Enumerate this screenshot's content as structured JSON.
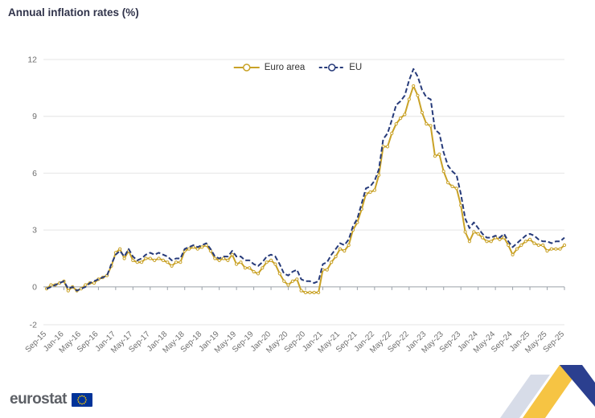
{
  "page": {
    "title": "Annual inflation rates (%)"
  },
  "footer": {
    "brand": "eurostat"
  },
  "brand": {
    "flag_blue": "#003399",
    "star_yellow": "#FFCC00",
    "ribbon_yellow": "#F6C443",
    "ribbon_blue": "#2B3F8F",
    "ribbon_gray": "#D7DCE8"
  },
  "chart_data": {
    "type": "line",
    "title": "Annual inflation rates (%)",
    "xlabel": "",
    "ylabel": "",
    "ylim": [
      -2,
      12
    ],
    "yticks": [
      -2,
      0,
      3,
      6,
      9,
      12
    ],
    "grid": true,
    "legend_position": "top-center",
    "tick_every": 4,
    "x": [
      "Sep-15",
      "Oct-15",
      "Nov-15",
      "Dec-15",
      "Jan-16",
      "Feb-16",
      "Mar-16",
      "Apr-16",
      "May-16",
      "Jun-16",
      "Jul-16",
      "Aug-16",
      "Sep-16",
      "Oct-16",
      "Nov-16",
      "Dec-16",
      "Jan-17",
      "Feb-17",
      "Mar-17",
      "Apr-17",
      "May-17",
      "Jun-17",
      "Jul-17",
      "Aug-17",
      "Sep-17",
      "Oct-17",
      "Nov-17",
      "Dec-17",
      "Jan-18",
      "Feb-18",
      "Mar-18",
      "Apr-18",
      "May-18",
      "Jun-18",
      "Jul-18",
      "Aug-18",
      "Sep-18",
      "Oct-18",
      "Nov-18",
      "Dec-18",
      "Jan-19",
      "Feb-19",
      "Mar-19",
      "Apr-19",
      "May-19",
      "Jun-19",
      "Jul-19",
      "Aug-19",
      "Sep-19",
      "Oct-19",
      "Nov-19",
      "Dec-19",
      "Jan-20",
      "Feb-20",
      "Mar-20",
      "Apr-20",
      "May-20",
      "Jun-20",
      "Jul-20",
      "Aug-20",
      "Sep-20",
      "Oct-20",
      "Nov-20",
      "Dec-20",
      "Jan-21",
      "Feb-21",
      "Mar-21",
      "Apr-21",
      "May-21",
      "Jun-21",
      "Jul-21",
      "Aug-21",
      "Sep-21",
      "Oct-21",
      "Nov-21",
      "Dec-21",
      "Jan-22",
      "Feb-22",
      "Mar-22",
      "Apr-22",
      "May-22",
      "Jun-22",
      "Jul-22",
      "Aug-22",
      "Sep-22",
      "Oct-22",
      "Nov-22",
      "Dec-22",
      "Jan-23",
      "Feb-23",
      "Mar-23",
      "Apr-23",
      "May-23",
      "Jun-23",
      "Jul-23",
      "Aug-23",
      "Sep-23",
      "Oct-23",
      "Nov-23",
      "Dec-23",
      "Jan-24",
      "Feb-24",
      "Mar-24",
      "Apr-24",
      "May-24",
      "Jun-24",
      "Jul-24",
      "Aug-24",
      "Sep-24",
      "Oct-24",
      "Nov-24",
      "Dec-24",
      "Jan-25",
      "Feb-25",
      "Mar-25",
      "Apr-25",
      "May-25",
      "Jun-25",
      "Jul-25",
      "Aug-25",
      "Sep-25"
    ],
    "series": [
      {
        "name": "Euro area",
        "color": "#C9A227",
        "style": "solid",
        "markers": true,
        "values": [
          -0.1,
          0.1,
          0.1,
          0.2,
          0.3,
          -0.2,
          0.0,
          -0.2,
          -0.1,
          0.1,
          0.2,
          0.2,
          0.4,
          0.5,
          0.6,
          1.1,
          1.8,
          2.0,
          1.5,
          1.9,
          1.4,
          1.3,
          1.3,
          1.5,
          1.5,
          1.4,
          1.5,
          1.4,
          1.3,
          1.1,
          1.3,
          1.3,
          1.9,
          2.0,
          2.1,
          2.0,
          2.1,
          2.2,
          1.9,
          1.5,
          1.4,
          1.5,
          1.4,
          1.7,
          1.2,
          1.3,
          1.0,
          1.0,
          0.8,
          0.7,
          1.0,
          1.3,
          1.4,
          1.2,
          0.7,
          0.3,
          0.1,
          0.3,
          0.4,
          -0.2,
          -0.3,
          -0.3,
          -0.3,
          -0.3,
          0.9,
          0.9,
          1.3,
          1.6,
          2.0,
          1.9,
          2.2,
          3.0,
          3.4,
          4.1,
          4.9,
          5.0,
          5.1,
          5.9,
          7.4,
          7.4,
          8.1,
          8.6,
          8.9,
          9.1,
          9.9,
          10.6,
          10.1,
          9.2,
          8.6,
          8.5,
          6.9,
          7.0,
          6.1,
          5.5,
          5.3,
          5.2,
          4.3,
          2.9,
          2.4,
          2.9,
          2.8,
          2.6,
          2.4,
          2.4,
          2.6,
          2.5,
          2.6,
          2.2,
          1.7,
          2.0,
          2.2,
          2.4,
          2.5,
          2.3,
          2.2,
          2.2,
          1.9,
          2.0,
          2.0,
          2.0,
          2.2
        ]
      },
      {
        "name": "EU",
        "color": "#273B7A",
        "style": "dashed",
        "markers": false,
        "values": [
          -0.1,
          0.0,
          0.1,
          0.2,
          0.3,
          -0.1,
          0.0,
          -0.2,
          -0.1,
          0.0,
          0.2,
          0.3,
          0.4,
          0.5,
          0.6,
          1.2,
          1.7,
          1.9,
          1.6,
          2.0,
          1.6,
          1.4,
          1.5,
          1.7,
          1.8,
          1.7,
          1.8,
          1.7,
          1.6,
          1.4,
          1.5,
          1.5,
          2.0,
          2.1,
          2.2,
          2.1,
          2.2,
          2.3,
          2.0,
          1.6,
          1.5,
          1.6,
          1.6,
          1.9,
          1.6,
          1.6,
          1.4,
          1.4,
          1.2,
          1.1,
          1.3,
          1.6,
          1.7,
          1.6,
          1.2,
          0.7,
          0.6,
          0.8,
          0.9,
          0.4,
          0.3,
          0.3,
          0.2,
          0.3,
          1.2,
          1.3,
          1.7,
          2.0,
          2.3,
          2.2,
          2.5,
          3.2,
          3.6,
          4.4,
          5.2,
          5.3,
          5.6,
          6.2,
          7.8,
          8.1,
          8.8,
          9.6,
          9.8,
          10.1,
          10.9,
          11.5,
          11.1,
          10.4,
          10.0,
          9.9,
          8.3,
          8.1,
          7.1,
          6.4,
          6.1,
          5.9,
          4.9,
          3.6,
          3.1,
          3.4,
          3.1,
          2.8,
          2.6,
          2.6,
          2.7,
          2.6,
          2.8,
          2.4,
          2.1,
          2.3,
          2.5,
          2.7,
          2.8,
          2.7,
          2.5,
          2.4,
          2.4,
          2.3,
          2.4,
          2.4,
          2.6
        ]
      }
    ]
  }
}
